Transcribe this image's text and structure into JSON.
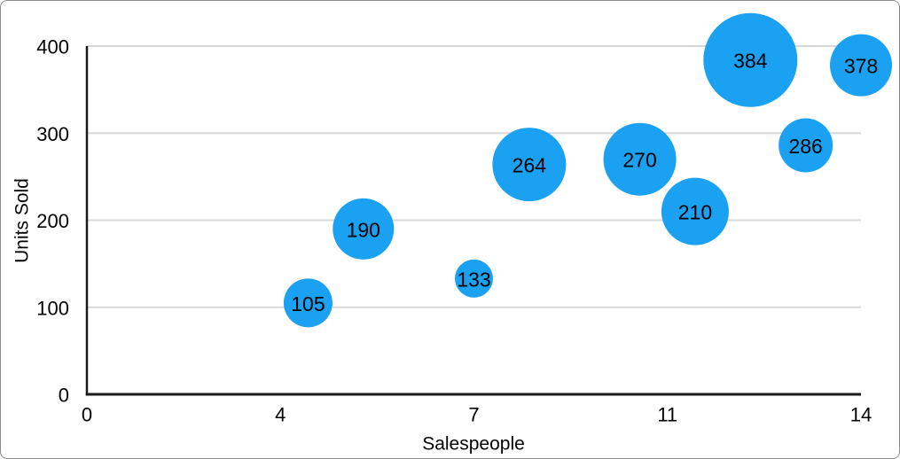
{
  "figure": {
    "background": "#ffffff",
    "border_color": "#8c8c8c"
  },
  "chart_data": {
    "type": "bubble",
    "title": "",
    "xlabel": "Salespeople",
    "ylabel": "Units Sold",
    "xlim": [
      0,
      14
    ],
    "ylim": [
      0,
      400
    ],
    "grid": "horizontal",
    "legend": "none",
    "x_ticks": [
      {
        "value": 0,
        "label": "0"
      },
      {
        "value": 3.5,
        "label": "4"
      },
      {
        "value": 7,
        "label": "7"
      },
      {
        "value": 10.5,
        "label": "11"
      },
      {
        "value": 14,
        "label": "14"
      }
    ],
    "y_ticks": [
      {
        "value": 0,
        "label": "0"
      },
      {
        "value": 100,
        "label": "100"
      },
      {
        "value": 200,
        "label": "200"
      },
      {
        "value": 300,
        "label": "300"
      },
      {
        "value": 400,
        "label": "400"
      }
    ],
    "points": [
      {
        "x": 4,
        "y": 105,
        "label": "105",
        "radius_px": 27.5
      },
      {
        "x": 5,
        "y": 190,
        "label": "190",
        "radius_px": 34.5
      },
      {
        "x": 7,
        "y": 133,
        "label": "133",
        "radius_px": 21.5
      },
      {
        "x": 8,
        "y": 264,
        "label": "264",
        "radius_px": 41.5
      },
      {
        "x": 10,
        "y": 270,
        "label": "270",
        "radius_px": 41
      },
      {
        "x": 11,
        "y": 210,
        "label": "210",
        "radius_px": 38
      },
      {
        "x": 12,
        "y": 384,
        "label": "384",
        "radius_px": 53
      },
      {
        "x": 13,
        "y": 286,
        "label": "286",
        "radius_px": 30.5
      },
      {
        "x": 14,
        "y": 378,
        "label": "378",
        "radius_px": 35
      }
    ],
    "colors": {
      "bubble_fill": "#1AA1F1",
      "bubble_label": "#000000",
      "gridline": "#D8D8D8",
      "axis_line": "#1A1A1A",
      "tick_label": "#000000",
      "axis_title": "#000000"
    },
    "font_sizes": {
      "tick_label": 22,
      "axis_title": 21,
      "bubble_label": 23
    }
  }
}
